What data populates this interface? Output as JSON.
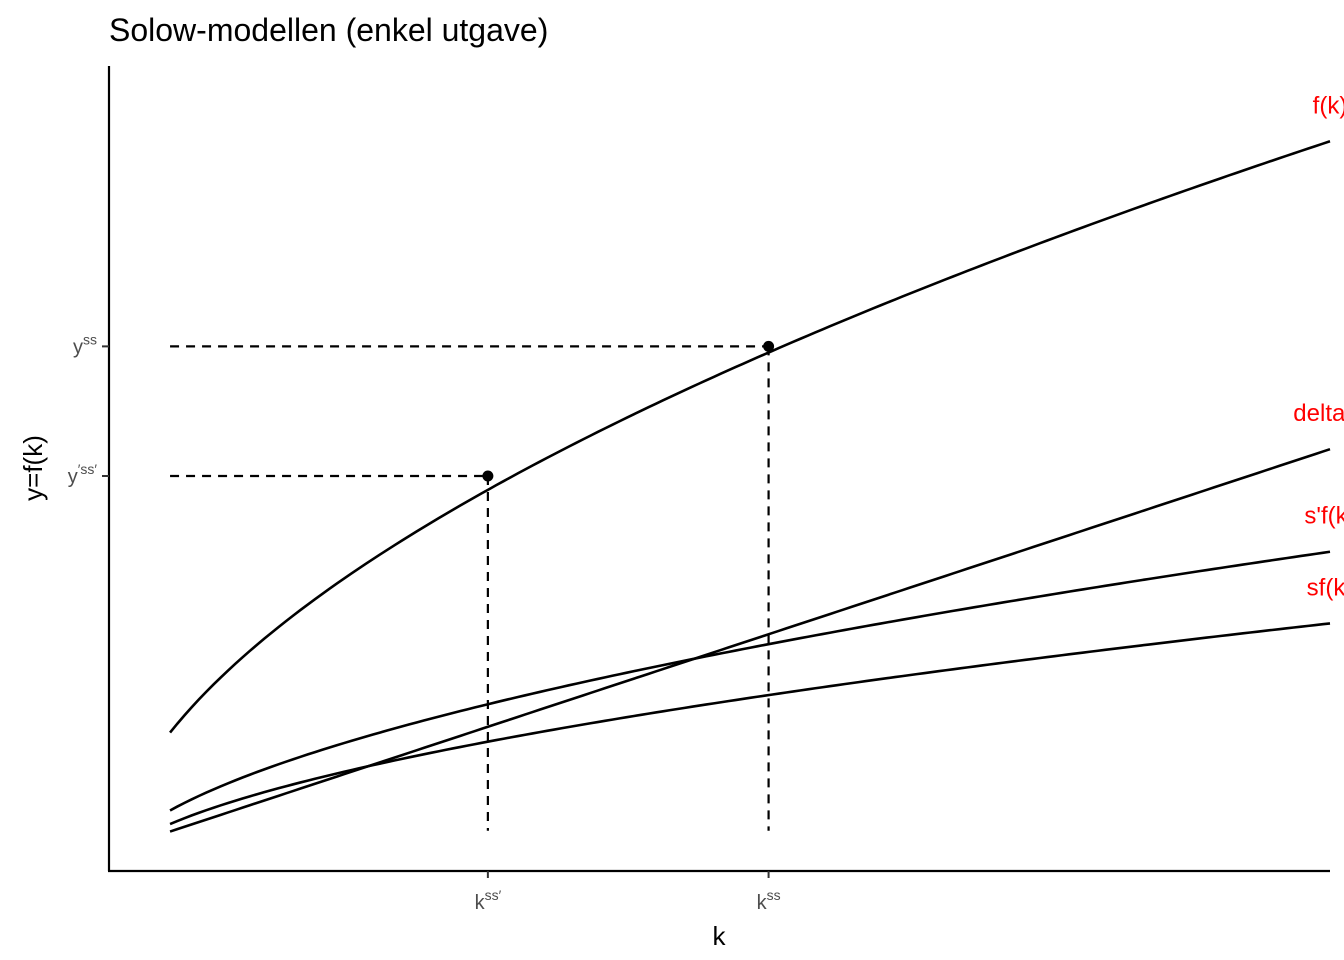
{
  "chart_data": {
    "type": "line",
    "title": "Solow-modellen (enkel utgave)",
    "xlabel": "k",
    "ylabel": "y=f(k)",
    "xlim": [
      0,
      1
    ],
    "ylim": [
      0,
      1
    ],
    "grid": false,
    "legend": "none",
    "curve_label_color": "#ff0000",
    "series": [
      {
        "name": "f(k)",
        "function": "f",
        "scale": 1.0,
        "label": "f(k)"
      },
      {
        "name": "delta*k",
        "function": "linear",
        "label": "delta*k"
      },
      {
        "name": "s'f(k)",
        "function": "f",
        "scale": 0.4375,
        "label": "s'f(k)"
      },
      {
        "name": "sf(k)",
        "function": "f",
        "scale": 0.3393,
        "label": "sf(k)"
      }
    ],
    "x_ticks": [
      {
        "value": 0.3103,
        "base": "k",
        "sup": "ss′"
      },
      {
        "value": 0.5402,
        "base": "k",
        "sup": "ss"
      }
    ],
    "y_ticks": [
      {
        "value": 0.6517,
        "base": "y",
        "sup": "ss"
      },
      {
        "value": 0.4907,
        "base": "y",
        "sup": "′ss′"
      }
    ],
    "steady_states": [
      {
        "k": 0.3103,
        "y": 0.4907
      },
      {
        "k": 0.5402,
        "y": 0.6517
      }
    ]
  }
}
